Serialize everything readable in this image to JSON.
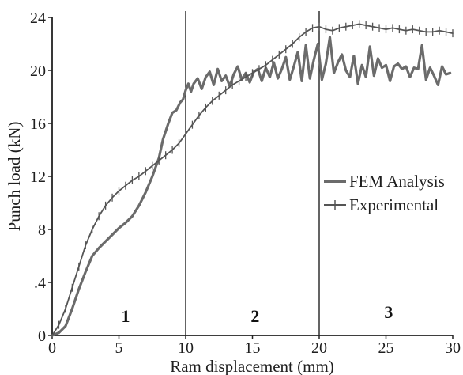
{
  "chart_data": {
    "type": "line",
    "xlabel": "Ram displacement (mm)",
    "ylabel": "Punch load (kN)",
    "xlim": [
      0,
      30
    ],
    "ylim": [
      0,
      24
    ],
    "x_ticks": [
      "0",
      "5",
      "10",
      "15",
      "20",
      "25",
      "30"
    ],
    "y_ticks": [
      "0",
      ".4",
      "8",
      "12",
      "16",
      "20",
      "24"
    ],
    "grid": false,
    "legend_position": "right",
    "vertical_lines": [
      10,
      20
    ],
    "region_labels": [
      {
        "label": "1",
        "x": 5.5,
        "y": 1.5
      },
      {
        "label": "2",
        "x": 15.2,
        "y": 1.5
      },
      {
        "label": "3",
        "x": 25.2,
        "y": 1.8
      }
    ],
    "series": [
      {
        "name": "FEM Analysis",
        "color": "#6b6b6b",
        "marker": "none",
        "x": [
          0,
          0.5,
          1,
          1.5,
          2,
          2.5,
          3,
          3.5,
          4,
          4.5,
          5,
          5.5,
          6,
          6.5,
          7,
          7.5,
          8,
          8.3,
          8.7,
          9,
          9.3,
          9.6,
          9.8,
          10,
          10.2,
          10.4,
          10.6,
          10.9,
          11.2,
          11.5,
          11.8,
          12.1,
          12.4,
          12.7,
          13,
          13.3,
          13.6,
          13.9,
          14.2,
          14.5,
          14.8,
          15.1,
          15.4,
          15.7,
          16,
          16.3,
          16.6,
          16.9,
          17.2,
          17.5,
          17.8,
          18.1,
          18.4,
          18.7,
          19,
          19.3,
          19.6,
          19.9,
          20.2,
          20.5,
          20.8,
          21.1,
          21.4,
          21.7,
          22,
          22.3,
          22.6,
          22.9,
          23.2,
          23.5,
          23.8,
          24.1,
          24.4,
          24.7,
          25,
          25.3,
          25.6,
          25.9,
          26.2,
          26.5,
          26.8,
          27.1,
          27.4,
          27.7,
          28,
          28.3,
          28.6,
          28.9,
          29.2,
          29.5,
          29.8
        ],
        "y": [
          0,
          0.2,
          0.7,
          2.0,
          3.5,
          4.8,
          6.0,
          6.6,
          7.1,
          7.6,
          8.1,
          8.5,
          9.0,
          9.8,
          10.8,
          12.0,
          13.4,
          14.8,
          16.0,
          16.8,
          17.0,
          17.6,
          17.8,
          18.5,
          19.0,
          18.4,
          19.0,
          19.4,
          18.6,
          19.5,
          19.9,
          18.9,
          20.1,
          19.2,
          19.6,
          18.8,
          19.7,
          20.3,
          19.3,
          19.8,
          19.1,
          19.9,
          20.1,
          19.2,
          20.2,
          19.5,
          20.6,
          19.4,
          20.1,
          21.0,
          19.3,
          20.3,
          21.4,
          19.2,
          21.9,
          19.4,
          20.8,
          22.0,
          19.3,
          20.5,
          22.5,
          19.8,
          20.6,
          21.2,
          20.0,
          19.5,
          21.1,
          19.0,
          20.4,
          19.5,
          21.8,
          19.6,
          20.9,
          20.2,
          20.4,
          19.2,
          20.3,
          20.5,
          20.1,
          20.3,
          19.5,
          20.2,
          20.1,
          21.9,
          19.3,
          20.2,
          19.6,
          18.9,
          20.3,
          19.7,
          19.8
        ]
      },
      {
        "name": "Experimental",
        "color": "#555555",
        "marker": "tick",
        "x": [
          0,
          0.5,
          1,
          1.5,
          2,
          2.5,
          3,
          3.5,
          4,
          4.5,
          5,
          5.5,
          6,
          6.5,
          7,
          7.5,
          8,
          8.5,
          9,
          9.5,
          10,
          10.5,
          11,
          11.5,
          12,
          12.5,
          13,
          13.5,
          14,
          14.5,
          15,
          15.5,
          16,
          16.5,
          17,
          17.5,
          18,
          18.5,
          19,
          19.5,
          20,
          20.5,
          21,
          21.5,
          22,
          22.5,
          23,
          23.5,
          24,
          24.5,
          25,
          25.5,
          26,
          26.5,
          27,
          27.5,
          28,
          28.5,
          29,
          29.5,
          30
        ],
        "y": [
          0,
          0.8,
          2.0,
          3.6,
          5.2,
          6.8,
          8.0,
          9.0,
          9.8,
          10.4,
          10.9,
          11.3,
          11.7,
          12.0,
          12.4,
          12.8,
          13.2,
          13.6,
          14.0,
          14.5,
          15.2,
          15.9,
          16.6,
          17.2,
          17.7,
          18.1,
          18.5,
          18.9,
          19.2,
          19.5,
          19.8,
          20.1,
          20.4,
          20.8,
          21.2,
          21.6,
          22.0,
          22.5,
          22.9,
          23.2,
          23.3,
          23.1,
          23.0,
          23.2,
          23.3,
          23.4,
          23.5,
          23.4,
          23.3,
          23.2,
          23.1,
          23.2,
          23.1,
          23.0,
          23.1,
          23.0,
          22.9,
          22.9,
          23.0,
          22.9,
          22.8
        ]
      }
    ]
  }
}
